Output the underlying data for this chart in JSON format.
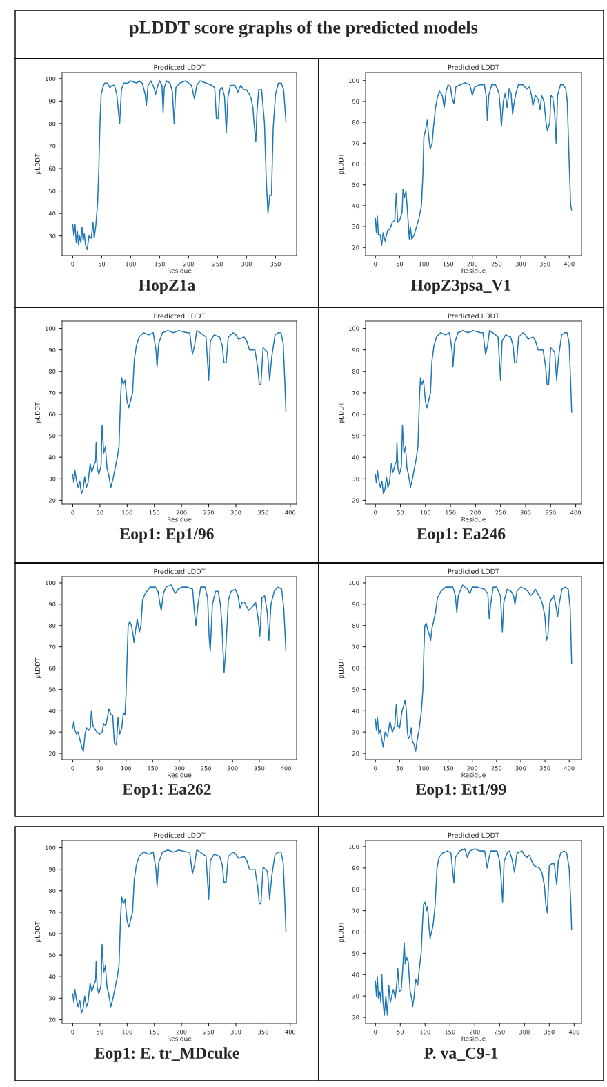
{
  "chart_data": [
    {
      "type": "line",
      "title": "Predicted LDDT",
      "xlabel": "Residue",
      "ylabel": "pLDDT",
      "annotations": [
        "pLDDT score graphs of the predicted models",
        "HopZ1a"
      ],
      "color": "#1f77b4",
      "xlim": [
        -18.4,
        386.4
      ],
      "ylim": [
        21.3,
        102.7
      ],
      "xticks": [
        0,
        50,
        100,
        150,
        200,
        250,
        300,
        350
      ],
      "yticks": [
        30,
        40,
        50,
        60,
        70,
        80,
        90,
        100
      ],
      "x": [
        0,
        2,
        4,
        6,
        8,
        10,
        12,
        14,
        16,
        18,
        20,
        22,
        25,
        28,
        32,
        35,
        37,
        40,
        43,
        45,
        47,
        49,
        52,
        55,
        60,
        64,
        68,
        72,
        76,
        79,
        81,
        84,
        88,
        95,
        100,
        110,
        115,
        120,
        125,
        127,
        130,
        135,
        140,
        143,
        147,
        150,
        154,
        156,
        158,
        162,
        168,
        172,
        175,
        178,
        185,
        195,
        205,
        210,
        214,
        220,
        230,
        240,
        245,
        248,
        251,
        254,
        258,
        262,
        265,
        268,
        272,
        280,
        285,
        290,
        295,
        300,
        305,
        308,
        311,
        313,
        316,
        318,
        321,
        326,
        331,
        334,
        337,
        340,
        343,
        346,
        350,
        355,
        360,
        364,
        368
      ],
      "values": [
        35,
        30,
        35,
        27,
        32,
        26,
        30,
        27,
        34,
        28,
        31,
        26,
        24,
        30,
        29,
        36,
        29,
        35,
        45,
        60,
        80,
        93,
        96,
        98,
        98,
        96,
        97,
        97,
        93,
        85,
        80,
        95,
        98,
        98,
        99,
        98,
        99,
        98,
        93,
        88,
        97,
        99,
        96,
        93,
        97,
        99,
        97,
        85,
        96,
        99,
        98,
        94,
        80,
        96,
        98,
        99,
        97,
        91,
        97,
        99,
        98,
        97,
        96,
        82,
        82,
        95,
        96,
        92,
        76,
        92,
        97,
        97,
        94,
        97,
        95,
        95,
        93,
        91,
        87,
        80,
        72,
        85,
        95,
        95,
        80,
        55,
        40,
        48,
        48,
        78,
        93,
        98,
        98,
        95,
        81
      ]
    },
    {
      "type": "line",
      "title": "Predicted LDDT",
      "xlabel": "Residue",
      "ylabel": "pLDDT",
      "annotations": [
        "HopZ3psa_V1"
      ],
      "color": "#1f77b4",
      "xlim": [
        -20.3,
        425.3
      ],
      "ylim": [
        16.1,
        103.9
      ],
      "xticks": [
        0,
        50,
        100,
        150,
        200,
        250,
        300,
        350,
        400
      ],
      "yticks": [
        20,
        30,
        40,
        50,
        60,
        70,
        80,
        90,
        100
      ],
      "x": [
        0,
        2,
        4,
        6,
        10,
        13,
        16,
        20,
        25,
        30,
        35,
        40,
        43,
        46,
        50,
        55,
        57,
        60,
        63,
        66,
        70,
        72,
        75,
        80,
        85,
        90,
        95,
        98,
        100,
        104,
        107,
        110,
        113,
        117,
        120,
        124,
        128,
        132,
        138,
        142,
        146,
        150,
        155,
        158,
        162,
        166,
        175,
        185,
        195,
        200,
        205,
        215,
        225,
        229,
        231,
        234,
        240,
        248,
        255,
        258,
        260,
        264,
        268,
        272,
        276,
        280,
        283,
        286,
        290,
        295,
        305,
        312,
        318,
        322,
        325,
        330,
        336,
        340,
        343,
        348,
        352,
        355,
        360,
        362,
        366,
        370,
        373,
        376,
        382,
        388,
        393,
        396,
        400,
        403,
        405
      ],
      "values": [
        34,
        27,
        35,
        26,
        26,
        21,
        27,
        23,
        28,
        29,
        32,
        33,
        46,
        32,
        33,
        37,
        48,
        44,
        47,
        38,
        24,
        30,
        24,
        26,
        30,
        34,
        40,
        55,
        73,
        77,
        81,
        73,
        67,
        70,
        78,
        87,
        92,
        95,
        93,
        87,
        95,
        98,
        97,
        92,
        89,
        97,
        98,
        99,
        98,
        93,
        97,
        98,
        98,
        92,
        81,
        93,
        98,
        98,
        94,
        86,
        78,
        90,
        94,
        87,
        96,
        94,
        84,
        89,
        94,
        98,
        98,
        96,
        97,
        93,
        88,
        93,
        91,
        86,
        93,
        90,
        80,
        76,
        80,
        93,
        92,
        84,
        70,
        93,
        98,
        98,
        96,
        90,
        60,
        40,
        38
      ]
    },
    {
      "type": "line",
      "title": "Predicted LDDT",
      "xlabel": "Residue",
      "ylabel": "pLDDT",
      "annotations": [
        "Eop1: Ep1/96"
      ],
      "color": "#1f77b4",
      "xlim": [
        -19.6,
        411.6
      ],
      "ylim": [
        18.2,
        103.4
      ],
      "xticks": [
        0,
        50,
        100,
        150,
        200,
        250,
        300,
        350,
        400
      ],
      "yticks": [
        20,
        30,
        40,
        50,
        60,
        70,
        80,
        90,
        100
      ],
      "x": [
        0,
        2,
        4,
        7,
        10,
        13,
        16,
        19,
        22,
        25,
        28,
        32,
        35,
        40,
        42,
        43,
        45,
        48,
        52,
        54,
        57,
        60,
        63,
        66,
        70,
        74,
        78,
        82,
        85,
        88,
        90,
        93,
        96,
        100,
        103,
        107,
        110,
        113,
        117,
        122,
        130,
        140,
        148,
        153,
        155,
        158,
        165,
        175,
        185,
        195,
        210,
        215,
        220,
        224,
        228,
        240,
        245,
        250,
        253,
        260,
        270,
        275,
        278,
        282,
        286,
        295,
        300,
        305,
        315,
        320,
        325,
        335,
        340,
        343,
        346,
        350,
        354,
        358,
        362,
        366,
        372,
        378,
        383,
        387,
        390,
        392
      ],
      "values": [
        32,
        28,
        34,
        29,
        26,
        29,
        23,
        25,
        31,
        26,
        28,
        37,
        33,
        37,
        38,
        47,
        35,
        32,
        36,
        55,
        42,
        45,
        35,
        32,
        26,
        30,
        35,
        40,
        45,
        68,
        77,
        74,
        76,
        66,
        63,
        67,
        70,
        85,
        92,
        96,
        98,
        97,
        98,
        90,
        82,
        93,
        98,
        99,
        98,
        99,
        98,
        98,
        88,
        92,
        99,
        97,
        96,
        76,
        94,
        97,
        96,
        92,
        84,
        84,
        96,
        98,
        97,
        95,
        96,
        94,
        90,
        90,
        82,
        74,
        74,
        91,
        90,
        89,
        76,
        87,
        97,
        98,
        98,
        93,
        75,
        61
      ]
    },
    {
      "type": "line",
      "title": "Predicted LDDT",
      "xlabel": "Residue",
      "ylabel": "pLDDT",
      "annotations": [
        "Eop1: Ea246"
      ],
      "color": "#1f77b4",
      "xlim": [
        -19.6,
        411.6
      ],
      "ylim": [
        18.2,
        103.4
      ],
      "xticks": [
        0,
        50,
        100,
        150,
        200,
        250,
        300,
        350,
        400
      ],
      "yticks": [
        20,
        30,
        40,
        50,
        60,
        70,
        80,
        90,
        100
      ],
      "x": [
        0,
        2,
        4,
        7,
        10,
        13,
        16,
        19,
        22,
        25,
        28,
        32,
        35,
        40,
        42,
        43,
        45,
        48,
        52,
        54,
        57,
        60,
        63,
        66,
        70,
        74,
        78,
        82,
        85,
        88,
        90,
        93,
        96,
        100,
        103,
        107,
        110,
        113,
        117,
        122,
        130,
        140,
        148,
        153,
        155,
        158,
        165,
        175,
        185,
        195,
        210,
        215,
        220,
        224,
        228,
        240,
        245,
        250,
        253,
        260,
        270,
        275,
        278,
        282,
        286,
        295,
        300,
        305,
        315,
        320,
        325,
        335,
        340,
        343,
        346,
        350,
        354,
        358,
        362,
        366,
        372,
        378,
        383,
        387,
        390,
        392
      ],
      "values": [
        32,
        28,
        34,
        29,
        26,
        29,
        23,
        25,
        31,
        26,
        28,
        37,
        33,
        37,
        38,
        47,
        35,
        32,
        36,
        55,
        42,
        45,
        35,
        32,
        26,
        30,
        35,
        40,
        45,
        68,
        77,
        74,
        76,
        66,
        63,
        67,
        70,
        85,
        92,
        96,
        98,
        97,
        98,
        90,
        82,
        93,
        98,
        99,
        98,
        99,
        98,
        98,
        88,
        92,
        99,
        97,
        96,
        76,
        94,
        97,
        96,
        92,
        84,
        84,
        96,
        98,
        97,
        95,
        96,
        94,
        90,
        90,
        82,
        74,
        74,
        91,
        90,
        89,
        76,
        87,
        97,
        98,
        98,
        93,
        75,
        61
      ]
    },
    {
      "type": "line",
      "title": "Predicted LDDT",
      "xlabel": "Residue",
      "ylabel": "pLDDT",
      "annotations": [
        "Eop1: Ea262"
      ],
      "color": "#1f77b4",
      "xlim": [
        -20,
        420
      ],
      "ylim": [
        17.1,
        102.9
      ],
      "xticks": [
        0,
        50,
        100,
        150,
        200,
        250,
        300,
        350,
        400
      ],
      "yticks": [
        20,
        30,
        40,
        50,
        60,
        70,
        80,
        90,
        100
      ],
      "x": [
        0,
        2,
        4,
        7,
        10,
        14,
        17,
        20,
        23,
        26,
        30,
        33,
        35,
        38,
        45,
        50,
        55,
        58,
        62,
        65,
        68,
        72,
        75,
        78,
        82,
        85,
        88,
        92,
        95,
        98,
        100,
        102,
        104,
        107,
        110,
        113,
        115,
        118,
        121,
        125,
        128,
        131,
        136,
        145,
        155,
        160,
        163,
        166,
        170,
        175,
        185,
        192,
        198,
        205,
        215,
        225,
        228,
        231,
        235,
        240,
        248,
        253,
        256,
        258,
        262,
        268,
        273,
        277,
        280,
        282,
        284,
        287,
        292,
        297,
        305,
        310,
        314,
        318,
        322,
        330,
        338,
        343,
        348,
        351,
        355,
        360,
        365,
        368,
        372,
        378,
        385,
        392,
        396,
        400
      ],
      "values": [
        32,
        35,
        31,
        29,
        30,
        26,
        23,
        21,
        29,
        32,
        31,
        32,
        40,
        33,
        30,
        29,
        30,
        34,
        33,
        37,
        41,
        38,
        38,
        25,
        24,
        37,
        29,
        32,
        39,
        38,
        48,
        65,
        80,
        82,
        80,
        76,
        72,
        78,
        83,
        77,
        80,
        92,
        95,
        98,
        98,
        96,
        91,
        87,
        95,
        98,
        99,
        95,
        97,
        98,
        98,
        97,
        87,
        80,
        90,
        98,
        98,
        93,
        74,
        68,
        90,
        96,
        96,
        90,
        80,
        68,
        58,
        68,
        92,
        96,
        97,
        94,
        88,
        91,
        91,
        87,
        89,
        91,
        83,
        75,
        93,
        94,
        86,
        73,
        90,
        96,
        98,
        97,
        88,
        68
      ]
    },
    {
      "type": "line",
      "title": "Predicted LDDT",
      "xlabel": "Residue",
      "ylabel": "pLDDT",
      "annotations": [
        "Eop1: Et1/99"
      ],
      "color": "#1f77b4",
      "xlim": [
        -20.3,
        425.3
      ],
      "ylim": [
        17.1,
        102.9
      ],
      "xticks": [
        0,
        50,
        100,
        150,
        200,
        250,
        300,
        350,
        400
      ],
      "yticks": [
        20,
        30,
        40,
        50,
        60,
        70,
        80,
        90,
        100
      ],
      "x": [
        0,
        2,
        4,
        7,
        10,
        13,
        16,
        20,
        25,
        30,
        35,
        40,
        43,
        46,
        50,
        55,
        58,
        61,
        64,
        66,
        68,
        71,
        74,
        76,
        80,
        83,
        86,
        90,
        95,
        98,
        100,
        102,
        105,
        108,
        111,
        114,
        117,
        120,
        124,
        128,
        135,
        145,
        160,
        165,
        168,
        171,
        180,
        190,
        195,
        200,
        210,
        225,
        232,
        235,
        238,
        243,
        250,
        258,
        262,
        265,
        272,
        280,
        285,
        288,
        292,
        300,
        310,
        315,
        320,
        325,
        330,
        340,
        345,
        350,
        353,
        356,
        360,
        368,
        372,
        376,
        380,
        385,
        392,
        398,
        402,
        405
      ],
      "values": [
        36,
        31,
        37,
        29,
        31,
        27,
        23,
        30,
        28,
        35,
        30,
        33,
        43,
        33,
        32,
        40,
        42,
        45,
        40,
        30,
        27,
        28,
        32,
        26,
        24,
        21,
        26,
        31,
        40,
        50,
        68,
        80,
        81,
        78,
        76,
        73,
        79,
        82,
        86,
        93,
        96,
        98,
        98,
        94,
        86,
        94,
        99,
        97,
        95,
        98,
        98,
        97,
        95,
        83,
        90,
        98,
        98,
        94,
        77,
        91,
        97,
        96,
        94,
        90,
        96,
        98,
        97,
        96,
        94,
        95,
        97,
        93,
        90,
        84,
        73,
        75,
        91,
        94,
        90,
        84,
        91,
        97,
        98,
        97,
        88,
        62
      ]
    },
    {
      "type": "line",
      "title": "Predicted LDDT",
      "xlabel": "Residue",
      "ylabel": "pLDDT",
      "annotations": [
        "Eop1: E. tr_MDcuke"
      ],
      "color": "#1f77b4",
      "xlim": [
        -19.6,
        411.6
      ],
      "ylim": [
        18.2,
        103.4
      ],
      "xticks": [
        0,
        50,
        100,
        150,
        200,
        250,
        300,
        350,
        400
      ],
      "yticks": [
        20,
        30,
        40,
        50,
        60,
        70,
        80,
        90,
        100
      ],
      "x": [
        0,
        2,
        4,
        7,
        10,
        13,
        16,
        19,
        22,
        25,
        28,
        32,
        35,
        40,
        42,
        43,
        45,
        48,
        52,
        54,
        57,
        60,
        63,
        66,
        70,
        74,
        78,
        82,
        85,
        88,
        90,
        93,
        96,
        100,
        103,
        107,
        110,
        113,
        117,
        122,
        130,
        140,
        148,
        153,
        155,
        158,
        165,
        175,
        185,
        195,
        210,
        215,
        220,
        224,
        228,
        240,
        245,
        250,
        253,
        260,
        270,
        275,
        278,
        282,
        286,
        295,
        300,
        305,
        315,
        320,
        325,
        335,
        340,
        343,
        346,
        350,
        354,
        358,
        362,
        366,
        372,
        378,
        383,
        387,
        390,
        392
      ],
      "values": [
        32,
        28,
        34,
        29,
        26,
        29,
        23,
        25,
        31,
        26,
        28,
        37,
        33,
        37,
        38,
        47,
        35,
        32,
        36,
        55,
        42,
        45,
        35,
        32,
        26,
        30,
        35,
        40,
        45,
        68,
        77,
        74,
        76,
        66,
        63,
        67,
        70,
        85,
        92,
        96,
        98,
        97,
        98,
        90,
        82,
        93,
        98,
        99,
        98,
        99,
        98,
        98,
        88,
        92,
        99,
        97,
        96,
        76,
        94,
        97,
        96,
        92,
        84,
        84,
        96,
        98,
        97,
        95,
        96,
        94,
        90,
        90,
        82,
        74,
        74,
        91,
        90,
        89,
        76,
        87,
        97,
        98,
        98,
        93,
        75,
        61
      ]
    },
    {
      "type": "line",
      "title": "Predicted LDDT",
      "xlabel": "Residue",
      "ylabel": "pLDDT",
      "annotations": [
        "P. va_C9-1"
      ],
      "color": "#1f77b4",
      "xlim": [
        -19.8,
        414.8
      ],
      "ylim": [
        17.1,
        102.9
      ],
      "xticks": [
        0,
        50,
        100,
        150,
        200,
        250,
        300,
        350,
        400
      ],
      "yticks": [
        20,
        30,
        40,
        50,
        60,
        70,
        80,
        90,
        100
      ],
      "x": [
        0,
        2,
        4,
        6,
        9,
        11,
        13,
        15,
        18,
        21,
        24,
        27,
        30,
        33,
        36,
        40,
        43,
        45,
        48,
        52,
        55,
        58,
        60,
        63,
        66,
        70,
        73,
        75,
        78,
        81,
        85,
        88,
        92,
        95,
        97,
        100,
        103,
        105,
        108,
        110,
        113,
        116,
        120,
        124,
        128,
        135,
        145,
        152,
        155,
        158,
        161,
        170,
        180,
        185,
        190,
        200,
        210,
        220,
        225,
        228,
        232,
        245,
        250,
        253,
        256,
        259,
        265,
        270,
        275,
        280,
        285,
        295,
        300,
        305,
        310,
        315,
        320,
        330,
        335,
        340,
        343,
        346,
        350,
        355,
        360,
        365,
        368,
        373,
        380,
        385,
        390,
        393,
        395
      ],
      "values": [
        37,
        30,
        39,
        29,
        32,
        27,
        40,
        28,
        21,
        30,
        21,
        35,
        27,
        30,
        33,
        29,
        36,
        43,
        32,
        33,
        43,
        55,
        45,
        48,
        46,
        32,
        29,
        25,
        30,
        38,
        35,
        42,
        50,
        65,
        73,
        74,
        70,
        72,
        62,
        57,
        60,
        63,
        72,
        90,
        95,
        97,
        98,
        97,
        90,
        83,
        95,
        98,
        99,
        95,
        98,
        99,
        98,
        98,
        90,
        94,
        98,
        98,
        93,
        85,
        74,
        93,
        97,
        98,
        94,
        88,
        97,
        98,
        96,
        95,
        96,
        93,
        91,
        90,
        88,
        82,
        73,
        69,
        91,
        92,
        92,
        82,
        93,
        97,
        98,
        97,
        90,
        75,
        61
      ]
    }
  ]
}
